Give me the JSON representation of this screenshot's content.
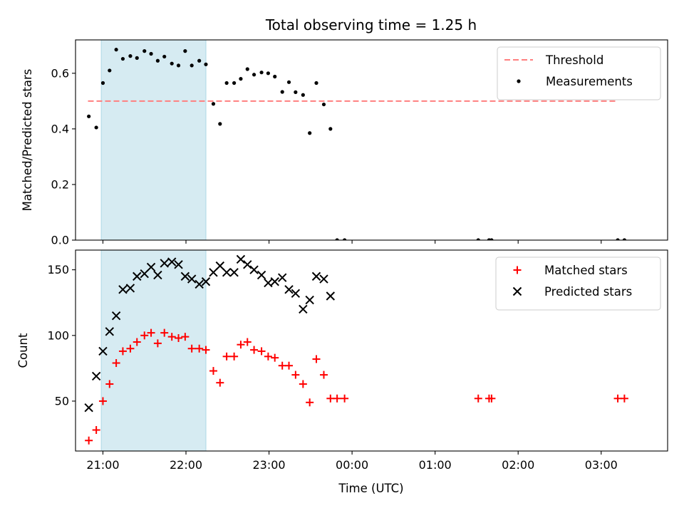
{
  "chart_data": {
    "title": "Total observing time = 1.25 h",
    "type": "scatter",
    "shared_x": {
      "label": "Time (UTC)",
      "range_hours": [
        20.67,
        27.8
      ],
      "ticks": [
        {
          "value": 21,
          "label": "21:00"
        },
        {
          "value": 22,
          "label": "22:00"
        },
        {
          "value": 23,
          "label": "23:00"
        },
        {
          "value": 24,
          "label": "00:00"
        },
        {
          "value": 25,
          "label": "01:00"
        },
        {
          "value": 26,
          "label": "02:00"
        },
        {
          "value": 27,
          "label": "03:00"
        }
      ],
      "highlight_span": [
        20.98,
        22.24
      ],
      "highlight_color": "#add8e6"
    },
    "panels": [
      {
        "id": "ratio",
        "ylabel": "Matched/Predicted stars",
        "ylim": [
          0,
          0.72
        ],
        "yticks": [
          {
            "value": 0.0,
            "label": "0.0"
          },
          {
            "value": 0.2,
            "label": "0.2"
          },
          {
            "value": 0.4,
            "label": "0.4"
          },
          {
            "value": 0.6,
            "label": "0.6"
          }
        ],
        "legend_position": "top-right",
        "threshold": {
          "name": "Threshold",
          "value": 0.5,
          "x_range": [
            20.82,
            27.2
          ],
          "color": "#ff7f7f"
        },
        "series": [
          {
            "name": "Measurements",
            "marker": "dot",
            "color": "#000000",
            "points": [
              [
                20.83,
                0.445
              ],
              [
                20.92,
                0.405
              ],
              [
                21.0,
                0.565
              ],
              [
                21.08,
                0.61
              ],
              [
                21.16,
                0.685
              ],
              [
                21.24,
                0.652
              ],
              [
                21.33,
                0.662
              ],
              [
                21.41,
                0.655
              ],
              [
                21.5,
                0.68
              ],
              [
                21.58,
                0.67
              ],
              [
                21.66,
                0.645
              ],
              [
                21.74,
                0.66
              ],
              [
                21.83,
                0.635
              ],
              [
                21.91,
                0.628
              ],
              [
                21.99,
                0.68
              ],
              [
                22.07,
                0.628
              ],
              [
                22.16,
                0.645
              ],
              [
                22.24,
                0.632
              ],
              [
                22.33,
                0.49
              ],
              [
                22.41,
                0.418
              ],
              [
                22.49,
                0.565
              ],
              [
                22.58,
                0.565
              ],
              [
                22.66,
                0.58
              ],
              [
                22.74,
                0.615
              ],
              [
                22.82,
                0.595
              ],
              [
                22.91,
                0.603
              ],
              [
                22.99,
                0.6
              ],
              [
                23.07,
                0.588
              ],
              [
                23.16,
                0.533
              ],
              [
                23.24,
                0.568
              ],
              [
                23.32,
                0.532
              ],
              [
                23.41,
                0.522
              ],
              [
                23.49,
                0.385
              ],
              [
                23.57,
                0.565
              ],
              [
                23.66,
                0.488
              ],
              [
                23.74,
                0.4
              ],
              [
                23.82,
                0.0
              ],
              [
                23.91,
                0.0
              ],
              [
                25.52,
                0.0
              ],
              [
                25.65,
                0.0
              ],
              [
                25.68,
                0.0
              ],
              [
                27.2,
                0.0
              ],
              [
                27.28,
                0.0
              ]
            ]
          }
        ]
      },
      {
        "id": "counts",
        "ylabel": "Count",
        "ylim": [
          12,
          165
        ],
        "yticks": [
          {
            "value": 50,
            "label": "50"
          },
          {
            "value": 100,
            "label": "100"
          },
          {
            "value": 150,
            "label": "150"
          }
        ],
        "legend_position": "top-right",
        "series": [
          {
            "name": "Matched stars",
            "marker": "plus",
            "color": "#ff0000",
            "points": [
              [
                20.83,
                20
              ],
              [
                20.92,
                28
              ],
              [
                21.0,
                50
              ],
              [
                21.08,
                63
              ],
              [
                21.16,
                79
              ],
              [
                21.24,
                88
              ],
              [
                21.33,
                90
              ],
              [
                21.41,
                95
              ],
              [
                21.5,
                100
              ],
              [
                21.58,
                102
              ],
              [
                21.66,
                94
              ],
              [
                21.74,
                102
              ],
              [
                21.83,
                99
              ],
              [
                21.91,
                98
              ],
              [
                21.99,
                99
              ],
              [
                22.07,
                90
              ],
              [
                22.16,
                90
              ],
              [
                22.24,
                89
              ],
              [
                22.33,
                73
              ],
              [
                22.41,
                64
              ],
              [
                22.49,
                84
              ],
              [
                22.58,
                84
              ],
              [
                22.66,
                93
              ],
              [
                22.74,
                95
              ],
              [
                22.82,
                89
              ],
              [
                22.91,
                88
              ],
              [
                22.99,
                84
              ],
              [
                23.07,
                83
              ],
              [
                23.16,
                77
              ],
              [
                23.24,
                77
              ],
              [
                23.32,
                70
              ],
              [
                23.41,
                63
              ],
              [
                23.49,
                49
              ],
              [
                23.57,
                82
              ],
              [
                23.66,
                70
              ],
              [
                23.74,
                52
              ],
              [
                23.82,
                52
              ],
              [
                23.91,
                52
              ],
              [
                25.52,
                52
              ],
              [
                25.65,
                52
              ],
              [
                25.68,
                52
              ],
              [
                27.2,
                52
              ],
              [
                27.28,
                52
              ]
            ]
          },
          {
            "name": "Predicted stars",
            "marker": "x",
            "color": "#000000",
            "points": [
              [
                20.83,
                45
              ],
              [
                20.92,
                69
              ],
              [
                21.0,
                88
              ],
              [
                21.08,
                103
              ],
              [
                21.16,
                115
              ],
              [
                21.24,
                135
              ],
              [
                21.33,
                136
              ],
              [
                21.41,
                145
              ],
              [
                21.5,
                147
              ],
              [
                21.58,
                152
              ],
              [
                21.66,
                146
              ],
              [
                21.74,
                155
              ],
              [
                21.83,
                156
              ],
              [
                21.91,
                154
              ],
              [
                21.99,
                145
              ],
              [
                22.07,
                143
              ],
              [
                22.16,
                139
              ],
              [
                22.24,
                141
              ],
              [
                22.33,
                148
              ],
              [
                22.41,
                153
              ],
              [
                22.49,
                148
              ],
              [
                22.58,
                148
              ],
              [
                22.66,
                158
              ],
              [
                22.74,
                154
              ],
              [
                22.82,
                150
              ],
              [
                22.91,
                146
              ],
              [
                22.99,
                140
              ],
              [
                23.07,
                141
              ],
              [
                23.16,
                144
              ],
              [
                23.24,
                135
              ],
              [
                23.32,
                132
              ],
              [
                23.41,
                120
              ],
              [
                23.49,
                127
              ],
              [
                23.57,
                145
              ],
              [
                23.66,
                143
              ],
              [
                23.74,
                130
              ]
            ]
          }
        ]
      }
    ]
  }
}
